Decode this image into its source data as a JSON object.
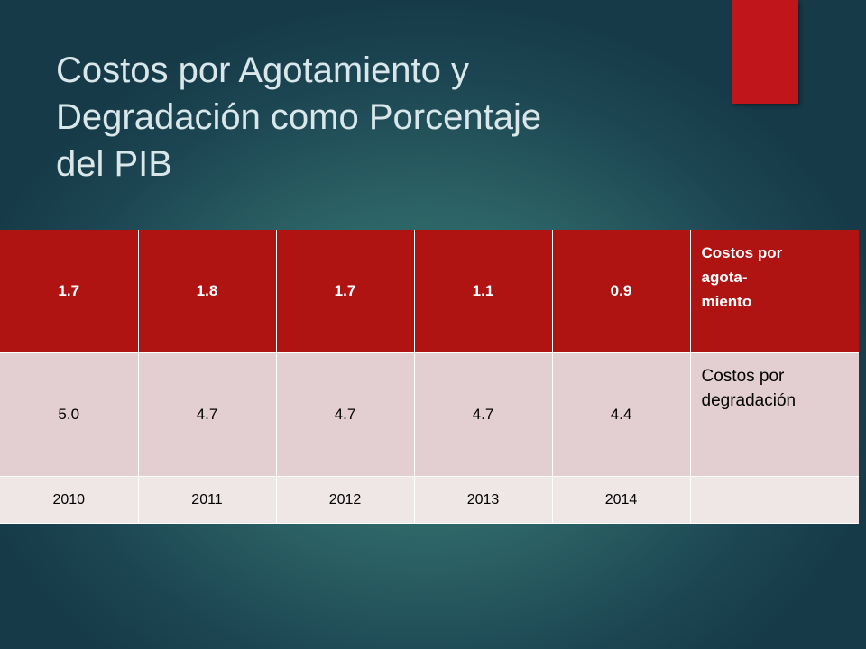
{
  "header": {
    "title_lines": [
      "Costos por Agotamiento y",
      "Degradación como Porcentaje",
      "del PIB"
    ]
  },
  "table": {
    "rows": [
      {
        "cells": [
          "1.7",
          "1.8",
          "1.7",
          "1.1",
          "0.9"
        ],
        "label_lines": [
          "Costos por",
          "agota-",
          "miento"
        ]
      },
      {
        "cells": [
          "5.0",
          "4.7",
          "4.7",
          "4.7",
          "4.4"
        ],
        "label_lines": [
          "Costos por",
          "degradación"
        ]
      },
      {
        "cells": [
          "2010",
          "2011",
          "2012",
          "2013",
          "2014"
        ],
        "label_lines": []
      }
    ]
  }
}
